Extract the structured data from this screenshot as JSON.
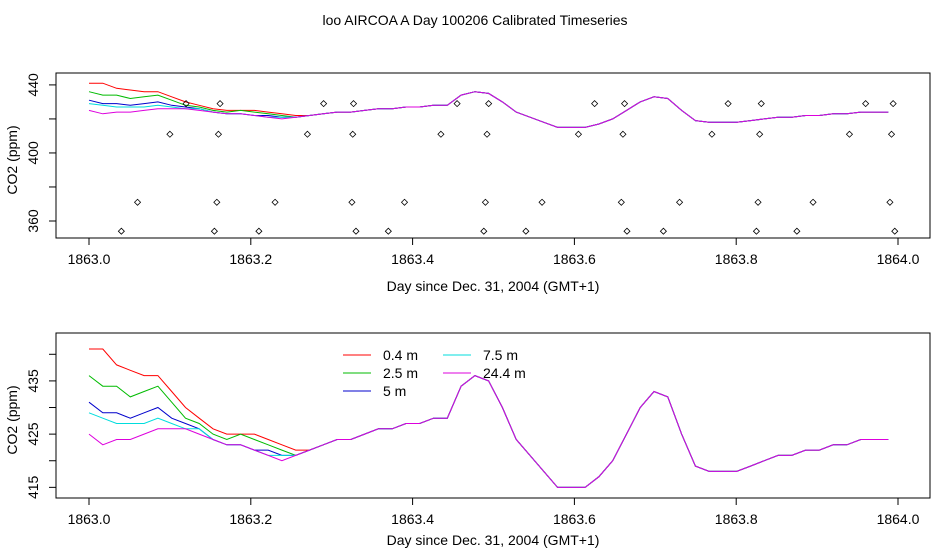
{
  "figure": {
    "title": "loo AIRCOA A  Day 100206  Calibrated Timeseries"
  },
  "chart_data": [
    {
      "type": "line",
      "panel": "top",
      "xlabel": "Day since Dec. 31, 2004 (GMT+1)",
      "ylabel": "CO2 (ppm)",
      "xlim": [
        1863.0,
        1864.0
      ],
      "ylim": [
        350,
        447
      ],
      "x_ticks": [
        "1863.0",
        "1863.2",
        "1863.4",
        "1863.6",
        "1863.8",
        "1864.0"
      ],
      "y_ticks": [
        "360",
        "380",
        "400",
        "420",
        "440"
      ],
      "y_tick_labels_shown": [
        "360",
        "400",
        "440"
      ],
      "grid": false,
      "legend": null,
      "series": [
        {
          "color": "#ff0000",
          "values": [
            441,
            441,
            438,
            437,
            436,
            436,
            433,
            430,
            428,
            426,
            425,
            425,
            425,
            424,
            423,
            422,
            422,
            423,
            424,
            424,
            425,
            426,
            426,
            427,
            427,
            428,
            428,
            434,
            436,
            435,
            430,
            424,
            421,
            418,
            415,
            415,
            415,
            417,
            420,
            425,
            430,
            433,
            432,
            425,
            419,
            418,
            418,
            418,
            419,
            420,
            421,
            421,
            422,
            422,
            423,
            423,
            424,
            424,
            424
          ]
        },
        {
          "color": "#00bb00",
          "values": [
            436,
            434,
            434,
            432,
            433,
            434,
            431,
            428,
            427,
            425,
            424,
            425,
            424,
            423,
            422,
            421,
            422,
            423,
            424,
            424,
            425,
            426,
            426,
            427,
            427,
            428,
            428,
            434,
            436,
            435,
            430,
            424,
            421,
            418,
            415,
            415,
            415,
            417,
            420,
            425,
            430,
            433,
            432,
            425,
            419,
            418,
            418,
            418,
            419,
            420,
            421,
            421,
            422,
            422,
            423,
            423,
            424,
            424,
            424
          ]
        },
        {
          "color": "#0000cc",
          "values": [
            431,
            429,
            429,
            428,
            429,
            430,
            428,
            427,
            426,
            424,
            423,
            423,
            422,
            422,
            421,
            421,
            422,
            423,
            424,
            424,
            425,
            426,
            426,
            427,
            427,
            428,
            428,
            434,
            436,
            435,
            430,
            424,
            421,
            418,
            415,
            415,
            415,
            417,
            420,
            425,
            430,
            433,
            432,
            425,
            419,
            418,
            418,
            418,
            419,
            420,
            421,
            421,
            422,
            422,
            423,
            423,
            424,
            424,
            424
          ]
        },
        {
          "color": "#00dddd",
          "values": [
            429,
            428,
            427,
            427,
            427,
            428,
            427,
            426,
            426,
            424,
            423,
            423,
            422,
            421,
            421,
            421,
            422,
            423,
            424,
            424,
            425,
            426,
            426,
            427,
            427,
            428,
            428,
            434,
            436,
            435,
            430,
            424,
            421,
            418,
            415,
            415,
            415,
            417,
            420,
            425,
            430,
            433,
            432,
            425,
            419,
            418,
            418,
            418,
            419,
            420,
            421,
            421,
            422,
            422,
            423,
            423,
            424,
            424,
            424
          ]
        },
        {
          "color": "#dd00dd",
          "values": [
            425,
            423,
            424,
            424,
            425,
            426,
            426,
            426,
            425,
            424,
            423,
            423,
            422,
            421,
            420,
            421,
            422,
            423,
            424,
            424,
            425,
            426,
            426,
            427,
            427,
            428,
            428,
            434,
            436,
            435,
            430,
            424,
            421,
            418,
            415,
            415,
            415,
            417,
            420,
            425,
            430,
            433,
            432,
            425,
            419,
            418,
            418,
            418,
            419,
            420,
            421,
            421,
            422,
            422,
            423,
            423,
            424,
            424,
            424
          ]
        }
      ],
      "diamond_markers": [
        [
          1863.04,
          354
        ],
        [
          1863.06,
          371
        ],
        [
          1863.1,
          411
        ],
        [
          1863.12,
          429
        ],
        [
          1863.155,
          354
        ],
        [
          1863.158,
          371
        ],
        [
          1863.16,
          411
        ],
        [
          1863.162,
          429
        ],
        [
          1863.21,
          354
        ],
        [
          1863.23,
          371
        ],
        [
          1863.27,
          411
        ],
        [
          1863.29,
          429
        ],
        [
          1863.325,
          371
        ],
        [
          1863.326,
          411
        ],
        [
          1863.327,
          429
        ],
        [
          1863.33,
          354
        ],
        [
          1863.37,
          354
        ],
        [
          1863.39,
          371
        ],
        [
          1863.435,
          411
        ],
        [
          1863.455,
          429
        ],
        [
          1863.488,
          354
        ],
        [
          1863.49,
          371
        ],
        [
          1863.492,
          411
        ],
        [
          1863.494,
          429
        ],
        [
          1863.54,
          354
        ],
        [
          1863.56,
          371
        ],
        [
          1863.605,
          411
        ],
        [
          1863.625,
          429
        ],
        [
          1863.658,
          371
        ],
        [
          1863.66,
          411
        ],
        [
          1863.662,
          429
        ],
        [
          1863.665,
          354
        ],
        [
          1863.71,
          354
        ],
        [
          1863.73,
          371
        ],
        [
          1863.77,
          411
        ],
        [
          1863.79,
          429
        ],
        [
          1863.825,
          354
        ],
        [
          1863.827,
          371
        ],
        [
          1863.829,
          411
        ],
        [
          1863.831,
          429
        ],
        [
          1863.875,
          354
        ],
        [
          1863.895,
          371
        ],
        [
          1863.94,
          411
        ],
        [
          1863.96,
          429
        ],
        [
          1863.99,
          371
        ],
        [
          1863.992,
          411
        ],
        [
          1863.994,
          429
        ],
        [
          1863.996,
          354
        ]
      ]
    },
    {
      "type": "line",
      "panel": "bottom",
      "xlabel": "Day since Dec. 31, 2004 (GMT+1)",
      "ylabel": "CO2 (ppm)",
      "xlim": [
        1863.0,
        1864.0
      ],
      "ylim": [
        413,
        444
      ],
      "x_ticks": [
        "1863.0",
        "1863.2",
        "1863.4",
        "1863.6",
        "1863.8",
        "1864.0"
      ],
      "y_ticks": [
        "415",
        "420",
        "425",
        "430",
        "435",
        "440"
      ],
      "y_tick_labels_shown": [
        "415",
        "425",
        "435"
      ],
      "grid": false,
      "legend": "top-center",
      "series": [
        {
          "name": "0.4 m",
          "color": "#ff0000",
          "values": [
            441,
            441,
            438,
            437,
            436,
            436,
            433,
            430,
            428,
            426,
            425,
            425,
            425,
            424,
            423,
            422,
            422,
            423,
            424,
            424,
            425,
            426,
            426,
            427,
            427,
            428,
            428,
            434,
            436,
            435,
            430,
            424,
            421,
            418,
            415,
            415,
            415,
            417,
            420,
            425,
            430,
            433,
            432,
            425,
            419,
            418,
            418,
            418,
            419,
            420,
            421,
            421,
            422,
            422,
            423,
            423,
            424,
            424,
            424
          ]
        },
        {
          "name": "2.5 m",
          "color": "#00bb00",
          "values": [
            436,
            434,
            434,
            432,
            433,
            434,
            431,
            428,
            427,
            425,
            424,
            425,
            424,
            423,
            422,
            421,
            422,
            423,
            424,
            424,
            425,
            426,
            426,
            427,
            427,
            428,
            428,
            434,
            436,
            435,
            430,
            424,
            421,
            418,
            415,
            415,
            415,
            417,
            420,
            425,
            430,
            433,
            432,
            425,
            419,
            418,
            418,
            418,
            419,
            420,
            421,
            421,
            422,
            422,
            423,
            423,
            424,
            424,
            424
          ]
        },
        {
          "name": "5 m",
          "color": "#0000cc",
          "values": [
            431,
            429,
            429,
            428,
            429,
            430,
            428,
            427,
            426,
            424,
            423,
            423,
            422,
            422,
            421,
            421,
            422,
            423,
            424,
            424,
            425,
            426,
            426,
            427,
            427,
            428,
            428,
            434,
            436,
            435,
            430,
            424,
            421,
            418,
            415,
            415,
            415,
            417,
            420,
            425,
            430,
            433,
            432,
            425,
            419,
            418,
            418,
            418,
            419,
            420,
            421,
            421,
            422,
            422,
            423,
            423,
            424,
            424,
            424
          ]
        },
        {
          "name": "7.5 m",
          "color": "#00dddd",
          "values": [
            429,
            428,
            427,
            427,
            427,
            428,
            427,
            426,
            426,
            424,
            423,
            423,
            422,
            421,
            421,
            421,
            422,
            423,
            424,
            424,
            425,
            426,
            426,
            427,
            427,
            428,
            428,
            434,
            436,
            435,
            430,
            424,
            421,
            418,
            415,
            415,
            415,
            417,
            420,
            425,
            430,
            433,
            432,
            425,
            419,
            418,
            418,
            418,
            419,
            420,
            421,
            421,
            422,
            422,
            423,
            423,
            424,
            424,
            424
          ]
        },
        {
          "name": "24.4 m",
          "color": "#dd00dd",
          "values": [
            425,
            423,
            424,
            424,
            425,
            426,
            426,
            426,
            425,
            424,
            423,
            423,
            422,
            421,
            420,
            421,
            422,
            423,
            424,
            424,
            425,
            426,
            426,
            427,
            427,
            428,
            428,
            434,
            436,
            435,
            430,
            424,
            421,
            418,
            415,
            415,
            415,
            417,
            420,
            425,
            430,
            433,
            432,
            425,
            419,
            418,
            418,
            418,
            419,
            420,
            421,
            421,
            422,
            422,
            423,
            423,
            424,
            424,
            424
          ]
        }
      ]
    }
  ]
}
